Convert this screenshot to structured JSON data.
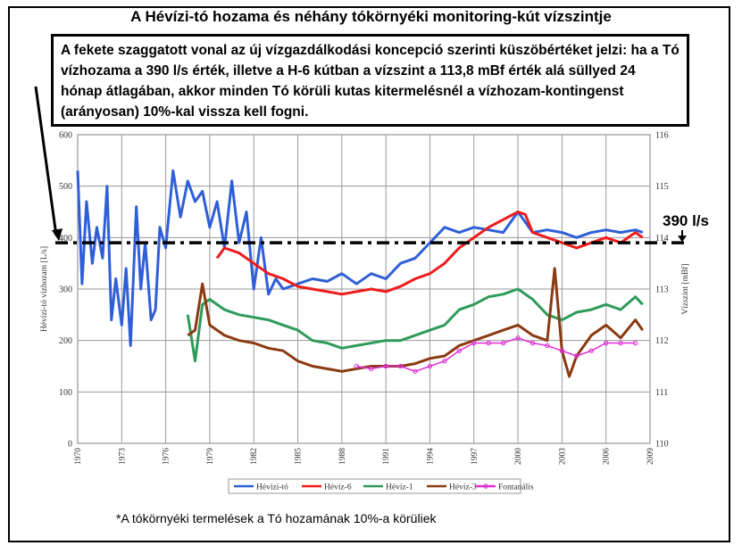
{
  "title": "A Hévízi-tó hozama és néhány tókörnyéki monitoring-kút vízszintje",
  "note": "A fekete szaggatott vonal az új vízgazdálkodási koncepció szerinti küszöbértéket jelzi: ha a Tó vízhozama a 390 l/s érték, illetve a H-6 kútban a vízszint  a 113,8 mBf érték alá süllyed 24 hónap átlagában, akkor minden Tó körüli kutas kitermelésnél a vízhozam-kontingenst (arányosan) 10%-kal vissza kell fogni.",
  "footnote": "*A tókörnyéki termelések a Tó hozamának 10%-a körüliek",
  "threshold_label": "390 l/s",
  "chart_data": {
    "type": "line",
    "xlabel": "",
    "ylabel_left": "Hévízi-tó vízhozam [L/s]",
    "ylabel_right": "Vízszint [mBf]",
    "xlim": [
      1970,
      2009
    ],
    "ylim_left": [
      0,
      600
    ],
    "ylim_right": [
      110,
      116
    ],
    "x_ticks": [
      "1970",
      "1973",
      "1976",
      "1979",
      "1982",
      "1985",
      "1988",
      "1991",
      "1994",
      "1997",
      "2000",
      "2003",
      "2006",
      "2009"
    ],
    "y_ticks_left": [
      "0",
      "100",
      "200",
      "300",
      "400",
      "500",
      "600"
    ],
    "y_ticks_right": [
      "110",
      "111",
      "112",
      "113",
      "114",
      "115",
      "116"
    ],
    "grid": true,
    "legend_position": "bottom-center",
    "threshold": {
      "axis": "left",
      "value": 390,
      "style": "dash-dot",
      "color": "#000000"
    },
    "series": [
      {
        "name": "Hévízi-tó",
        "axis": "left",
        "color": "#2f5fd8",
        "x": [
          1970.0,
          1970.3,
          1970.6,
          1971.0,
          1971.3,
          1971.7,
          1972.0,
          1972.3,
          1972.6,
          1973.0,
          1973.3,
          1973.6,
          1974.0,
          1974.3,
          1974.6,
          1975.0,
          1975.3,
          1975.6,
          1976.0,
          1976.5,
          1977.0,
          1977.5,
          1978.0,
          1978.5,
          1979.0,
          1979.5,
          1980.0,
          1980.5,
          1981.0,
          1981.5,
          1982.0,
          1982.5,
          1983.0,
          1983.5,
          1984.0,
          1985.0,
          1986.0,
          1987.0,
          1988.0,
          1989.0,
          1990.0,
          1991.0,
          1992.0,
          1993.0,
          1994.0,
          1995.0,
          1996.0,
          1997.0,
          1998.0,
          1999.0,
          2000.0,
          2001.0,
          2002.0,
          2003.0,
          2004.0,
          2005.0,
          2006.0,
          2007.0,
          2008.0,
          2008.5
        ],
        "values": [
          530,
          310,
          470,
          350,
          420,
          360,
          500,
          240,
          320,
          230,
          340,
          190,
          460,
          300,
          390,
          240,
          260,
          420,
          380,
          530,
          440,
          510,
          470,
          490,
          420,
          470,
          380,
          510,
          390,
          450,
          300,
          400,
          290,
          320,
          300,
          310,
          320,
          315,
          330,
          310,
          330,
          320,
          350,
          360,
          390,
          420,
          410,
          420,
          415,
          410,
          450,
          410,
          415,
          410,
          400,
          410,
          415,
          410,
          415,
          410
        ]
      },
      {
        "name": "Hévíz-6",
        "axis": "right",
        "color": "#ee1c1c",
        "x": [
          1979.5,
          1980.0,
          1981.0,
          1982.0,
          1983.0,
          1984.0,
          1985.0,
          1986.0,
          1987.0,
          1988.0,
          1989.0,
          1990.0,
          1991.0,
          1992.0,
          1993.0,
          1994.0,
          1995.0,
          1996.0,
          1997.0,
          1998.0,
          1999.0,
          2000.0,
          2000.5,
          2001.0,
          2002.0,
          2003.0,
          2004.0,
          2005.0,
          2006.0,
          2007.0,
          2008.0,
          2008.5
        ],
        "values": [
          113.6,
          113.8,
          113.7,
          113.5,
          113.3,
          113.2,
          113.05,
          113.0,
          112.95,
          112.9,
          112.95,
          113.0,
          112.95,
          113.05,
          113.2,
          113.3,
          113.5,
          113.8,
          114.0,
          114.2,
          114.35,
          114.5,
          114.45,
          114.1,
          114.0,
          113.9,
          113.8,
          113.9,
          114.0,
          113.9,
          114.1,
          114.0
        ]
      },
      {
        "name": "Hévíz-1",
        "axis": "right",
        "color": "#2e9b5a",
        "x": [
          1977.5,
          1978.0,
          1978.5,
          1979.0,
          1980.0,
          1981.0,
          1982.0,
          1983.0,
          1984.0,
          1985.0,
          1986.0,
          1987.0,
          1988.0,
          1989.0,
          1990.0,
          1991.0,
          1992.0,
          1993.0,
          1994.0,
          1995.0,
          1996.0,
          1997.0,
          1998.0,
          1999.0,
          2000.0,
          2001.0,
          2002.0,
          2003.0,
          2004.0,
          2005.0,
          2006.0,
          2007.0,
          2008.0,
          2008.5
        ],
        "values": [
          112.5,
          111.6,
          112.7,
          112.8,
          112.6,
          112.5,
          112.45,
          112.4,
          112.3,
          112.2,
          112.0,
          111.95,
          111.85,
          111.9,
          111.95,
          112.0,
          112.0,
          112.1,
          112.2,
          112.3,
          112.6,
          112.7,
          112.85,
          112.9,
          113.0,
          112.8,
          112.5,
          112.4,
          112.55,
          112.6,
          112.7,
          112.6,
          112.85,
          112.7
        ]
      },
      {
        "name": "Hévíz-3",
        "axis": "right",
        "color": "#8b3a12",
        "x": [
          1977.5,
          1978.0,
          1978.5,
          1979.0,
          1980.0,
          1981.0,
          1982.0,
          1983.0,
          1984.0,
          1985.0,
          1986.0,
          1987.0,
          1988.0,
          1989.0,
          1990.0,
          1991.0,
          1992.0,
          1993.0,
          1994.0,
          1995.0,
          1996.0,
          1997.0,
          1998.0,
          1999.0,
          2000.0,
          2001.0,
          2002.0,
          2002.5,
          2003.0,
          2003.5,
          2004.0,
          2005.0,
          2006.0,
          2007.0,
          2008.0,
          2008.5
        ],
        "values": [
          112.1,
          112.2,
          113.1,
          112.3,
          112.1,
          112.0,
          111.95,
          111.85,
          111.8,
          111.6,
          111.5,
          111.45,
          111.4,
          111.45,
          111.5,
          111.5,
          111.5,
          111.55,
          111.65,
          111.7,
          111.9,
          112.0,
          112.1,
          112.2,
          112.3,
          112.1,
          112.0,
          113.4,
          111.8,
          111.3,
          111.7,
          112.1,
          112.3,
          112.05,
          112.4,
          112.2
        ]
      },
      {
        "name": "Fontanális",
        "axis": "right",
        "color": "#e22fd6",
        "x": [
          1989.0,
          1990.0,
          1991.0,
          1992.0,
          1993.0,
          1994.0,
          1995.0,
          1996.0,
          1997.0,
          1998.0,
          1999.0,
          2000.0,
          2001.0,
          2002.0,
          2003.0,
          2004.0,
          2005.0,
          2006.0,
          2007.0,
          2008.0
        ],
        "values": [
          111.5,
          111.45,
          111.5,
          111.5,
          111.4,
          111.5,
          111.6,
          111.8,
          111.95,
          111.95,
          111.95,
          112.05,
          111.95,
          111.9,
          111.8,
          111.7,
          111.8,
          111.95,
          111.95,
          111.95
        ]
      }
    ]
  }
}
